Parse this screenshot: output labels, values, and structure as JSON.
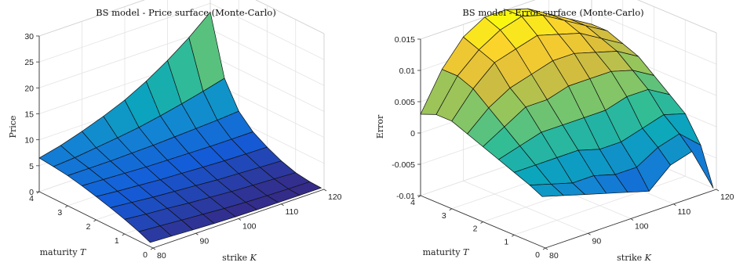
{
  "chart_data": [
    {
      "type": "surface",
      "title": "BS model - Price surface (Monte-Carlo)",
      "xlabel": "strike K",
      "xlabel_text": "strike",
      "xlabel_var": "K",
      "ylabel": "maturity T",
      "ylabel_text": "maturity",
      "ylabel_var": "T",
      "zlabel": "Price",
      "xlim": [
        80,
        120
      ],
      "ylim": [
        0,
        4
      ],
      "zlim": [
        0,
        30
      ],
      "x_ticks": [
        "80",
        "90",
        "100",
        "110",
        "120"
      ],
      "y_ticks": [
        "0",
        "1",
        "2",
        "3",
        "4"
      ],
      "z_ticks": [
        "0",
        "5",
        "10",
        "15",
        "20",
        "25",
        "30"
      ],
      "grid": true,
      "colormap": "parula",
      "x": [
        80,
        85,
        90,
        95,
        100,
        105,
        110,
        115,
        120
      ],
      "y": [
        0.1,
        0.5,
        1.0,
        1.5,
        2.0,
        2.5,
        3.0,
        3.5,
        4.0
      ],
      "z": [
        [
          0.8,
          0.6,
          0.4,
          0.2,
          0.1,
          0.05,
          0.02,
          0.0,
          0.0
        ],
        [
          1.8,
          1.5,
          1.2,
          0.9,
          0.6,
          0.4,
          0.25,
          0.15,
          0.1
        ],
        [
          2.8,
          2.4,
          2.1,
          1.7,
          1.4,
          1.1,
          0.9,
          0.7,
          0.5
        ],
        [
          3.7,
          3.3,
          2.9,
          2.6,
          2.3,
          2.0,
          1.8,
          1.6,
          1.4
        ],
        [
          4.5,
          4.1,
          3.8,
          3.5,
          3.3,
          3.1,
          2.9,
          2.8,
          2.7
        ],
        [
          5.2,
          5.0,
          4.8,
          4.6,
          4.5,
          4.4,
          4.3,
          4.3,
          4.3
        ],
        [
          5.8,
          5.8,
          5.8,
          5.9,
          6.0,
          6.2,
          6.4,
          6.6,
          6.9
        ],
        [
          6.2,
          6.5,
          7.0,
          7.5,
          8.1,
          8.9,
          9.8,
          10.8,
          11.9
        ],
        [
          6.5,
          7.5,
          8.8,
          10.3,
          12.0,
          14.2,
          16.8,
          19.8,
          23.3
        ]
      ]
    },
    {
      "type": "surface",
      "title": "BS model - Error surface (Monte-Carlo)",
      "xlabel": "strike K",
      "xlabel_text": "strike",
      "xlabel_var": "K",
      "ylabel": "maturity T",
      "ylabel_text": "maturity",
      "ylabel_var": "T",
      "zlabel": "Error",
      "xlim": [
        80,
        120
      ],
      "ylim": [
        0,
        4
      ],
      "zlim": [
        -0.01,
        0.015
      ],
      "x_ticks": [
        "80",
        "90",
        "100",
        "110",
        "120"
      ],
      "y_ticks": [
        "0",
        "1",
        "2",
        "3",
        "4"
      ],
      "z_ticks": [
        "-0.01",
        "-0.005",
        "0",
        "0.005",
        "0.01",
        "0.015"
      ],
      "grid": true,
      "colormap": "parula",
      "x": [
        80,
        85,
        90,
        95,
        100,
        105,
        110,
        115,
        120
      ],
      "y": [
        0.1,
        0.5,
        1.0,
        1.5,
        2.0,
        2.5,
        3.0,
        3.5,
        4.0
      ],
      "z": [
        [
          -0.002,
          -0.003,
          -0.004,
          -0.005,
          -0.006,
          -0.007,
          -0.004,
          -0.003,
          -0.01
        ],
        [
          -0.001,
          -0.002,
          -0.003,
          -0.003,
          -0.004,
          -0.004,
          -0.002,
          -0.001,
          -0.004
        ],
        [
          0.0,
          0.0,
          0.0,
          0.0,
          -0.001,
          -0.001,
          0.0,
          0.001,
          0.0
        ],
        [
          0.001,
          0.002,
          0.003,
          0.003,
          0.003,
          0.003,
          0.004,
          0.004,
          0.002
        ],
        [
          0.002,
          0.004,
          0.006,
          0.006,
          0.007,
          0.007,
          0.007,
          0.006,
          0.004
        ],
        [
          0.003,
          0.006,
          0.008,
          0.009,
          0.01,
          0.01,
          0.009,
          0.008,
          0.006
        ],
        [
          0.004,
          0.008,
          0.011,
          0.012,
          0.013,
          0.012,
          0.011,
          0.009,
          0.007
        ],
        [
          0.004,
          0.009,
          0.012,
          0.014,
          0.015,
          0.014,
          0.012,
          0.01,
          0.008
        ],
        [
          0.003,
          0.009,
          0.013,
          0.015,
          0.015,
          0.014,
          0.012,
          0.01,
          0.008
        ]
      ]
    }
  ]
}
